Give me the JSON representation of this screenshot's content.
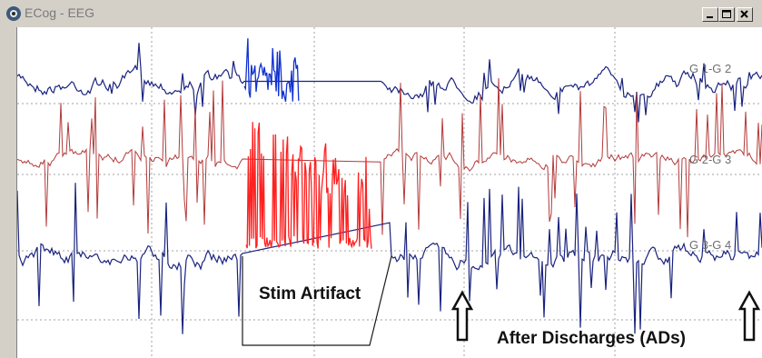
{
  "window": {
    "title": "ECog - EEG"
  },
  "icons": {
    "app": "app-icon",
    "minimize": "minimize-icon",
    "maximize": "maximize-icon",
    "close": "close-icon"
  },
  "channels": [
    {
      "label": "G 1-G 2",
      "color": "#1a237e"
    },
    {
      "label": "G 2-G 3",
      "color": "#b23a3a"
    },
    {
      "label": "G 3-G 4",
      "color": "#1a237e"
    }
  ],
  "annotations": {
    "stim": "Stim Artifact",
    "after_discharges": "After Discharges (ADs)"
  },
  "colors": {
    "artifact": "#ff2020",
    "grid": "#a0a0a0"
  }
}
